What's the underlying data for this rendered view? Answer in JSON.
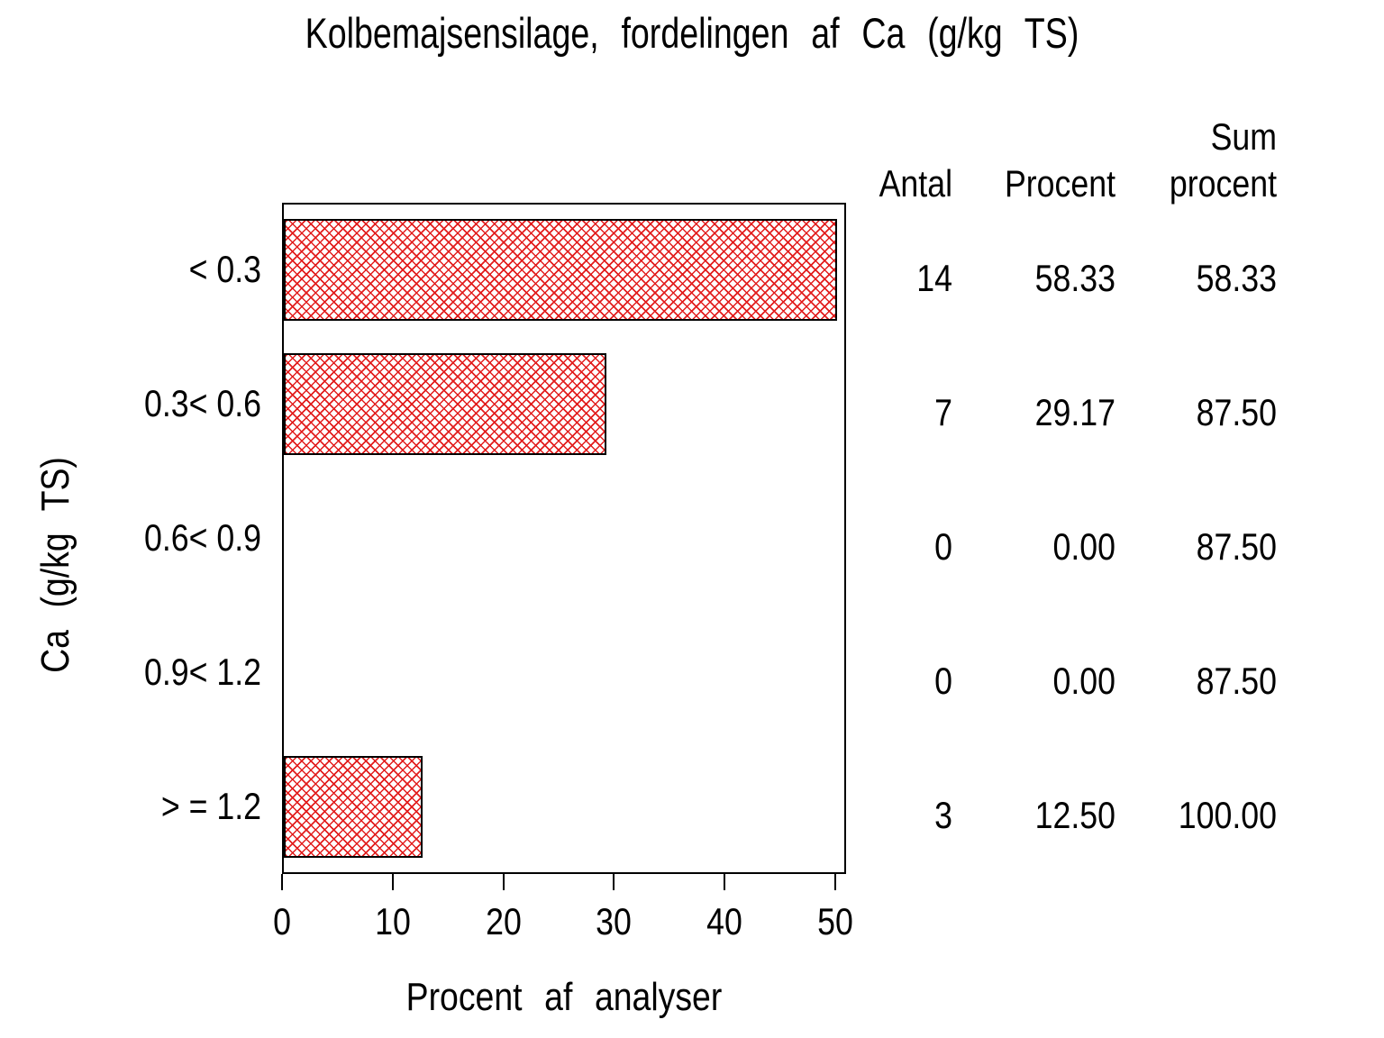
{
  "title": "Kolbemajsensilage, fordelingen af Ca (g/kg TS)",
  "x_axis": {
    "label": "Procent af analyser",
    "ticks": [
      "0",
      "10",
      "20",
      "30",
      "40",
      "50"
    ]
  },
  "y_axis": {
    "label": "Ca (g/kg TS)"
  },
  "table": {
    "headers": {
      "antal": "Antal",
      "procent": "Procent",
      "sum_line1": "Sum",
      "sum_line2": "procent"
    },
    "rows": [
      {
        "category": "< 0.3",
        "antal": "14",
        "procent": "58.33",
        "sum": "58.33"
      },
      {
        "category": "0.3< 0.6",
        "antal": "7",
        "procent": "29.17",
        "sum": "87.50"
      },
      {
        "category": "0.6< 0.9",
        "antal": "0",
        "procent": "0.00",
        "sum": "87.50"
      },
      {
        "category": "0.9< 1.2",
        "antal": "0",
        "procent": "0.00",
        "sum": "87.50"
      },
      {
        "category": "> = 1.2",
        "antal": "3",
        "procent": "12.50",
        "sum": "100.00"
      }
    ]
  },
  "colors": {
    "bar_hatch": "#e21d1d",
    "axis": "#000000",
    "background": "#ffffff"
  },
  "chart_data": {
    "type": "bar",
    "orientation": "horizontal",
    "title": "Kolbemajsensilage, fordelingen af Ca (g/kg TS)",
    "categories": [
      "< 0.3",
      "0.3< 0.6",
      "0.6< 0.9",
      "0.9< 1.2",
      "> = 1.2"
    ],
    "series": [
      {
        "name": "Antal",
        "values": [
          14,
          7,
          0,
          0,
          3
        ]
      },
      {
        "name": "Procent",
        "values": [
          58.33,
          29.17,
          0,
          0,
          12.5
        ]
      },
      {
        "name": "Sum procent",
        "values": [
          58.33,
          87.5,
          87.5,
          87.5,
          100
        ]
      }
    ],
    "bar_series": "Procent",
    "xlabel": "Procent af analyser",
    "ylabel": "Ca (g/kg TS)",
    "xlim": [
      0,
      50
    ],
    "x_ticks": [
      0,
      10,
      20,
      30,
      40,
      50
    ],
    "grid": false,
    "legend": false,
    "note": "First bar (58.33%) is clipped at the axis maximum of 50"
  }
}
